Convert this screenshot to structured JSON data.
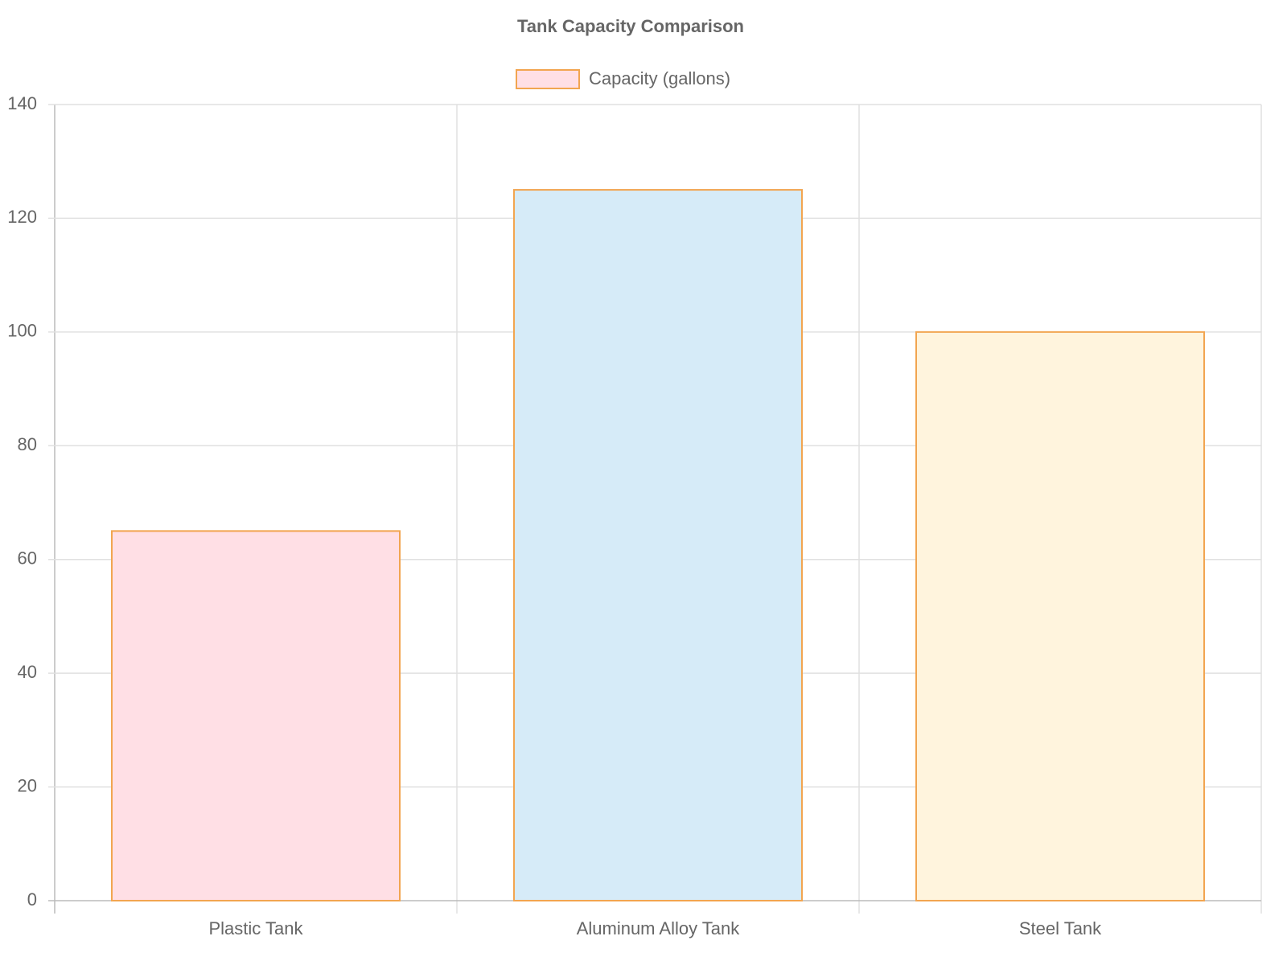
{
  "chart_data": {
    "type": "bar",
    "title": "Tank Capacity Comparison",
    "categories": [
      "Plastic Tank",
      "Aluminum Alloy Tank",
      "Steel Tank"
    ],
    "series": [
      {
        "name": "Capacity (gallons)",
        "values": [
          65,
          125,
          100
        ],
        "colors": [
          "#ffdfe5",
          "#d6ebf8",
          "#fff4dd"
        ],
        "border_color": "#f2a550"
      }
    ],
    "ylim": [
      0,
      140
    ],
    "yticks": [
      0,
      20,
      40,
      60,
      80,
      100,
      120,
      140
    ],
    "grid": true,
    "legend": "top"
  }
}
